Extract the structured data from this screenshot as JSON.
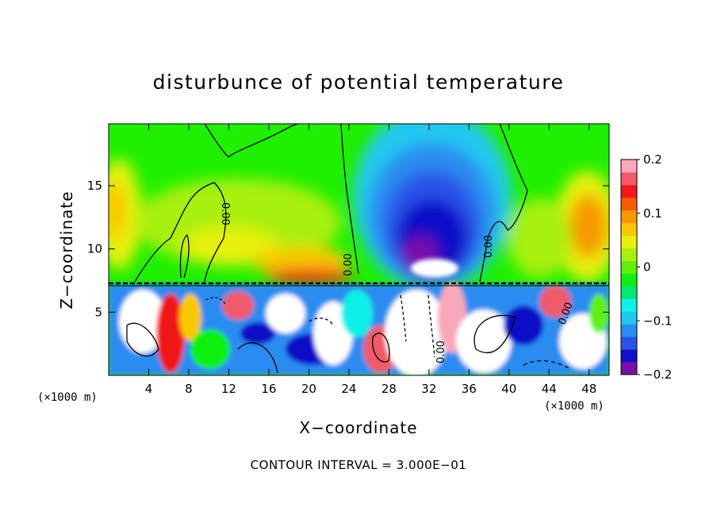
{
  "chart_data": {
    "type": "heatmap",
    "title": "disturbunce of potential temperature",
    "xlabel": "X−coordinate",
    "ylabel": "Z−coordinate",
    "x_unit_label_left": "(×1000 m)",
    "x_unit_label_right": "(×1000 m)",
    "x_range": [
      0,
      50
    ],
    "y_range": [
      0,
      19.9
    ],
    "x_ticks": [
      4,
      8,
      12,
      16,
      20,
      24,
      28,
      32,
      36,
      40,
      44,
      48
    ],
    "x_tick_labels": [
      "4",
      "8",
      "12",
      "16",
      "20",
      "24",
      "28",
      "32",
      "36",
      "40",
      "44",
      "48"
    ],
    "y_ticks": [
      5,
      10,
      15
    ],
    "y_tick_labels": [
      "5",
      "10",
      "15"
    ],
    "colorbar": {
      "range": [
        -0.2,
        0.2
      ],
      "ticks": [
        0.2,
        0.1,
        0,
        -0.1,
        -0.2
      ],
      "tick_labels": [
        "0.2",
        "0.1",
        "0",
        "−0.1",
        "−0.2"
      ],
      "colors": [
        "#7a0fa8",
        "#1010c8",
        "#2a52e8",
        "#2a8cf0",
        "#20c8f0",
        "#10f0e8",
        "#00e878",
        "#10f010",
        "#60f010",
        "#a8f010",
        "#e8f010",
        "#f8c800",
        "#f89800",
        "#f85a00",
        "#f01818",
        "#f05a6a",
        "#f8a8b8"
      ]
    },
    "contour_label": "0.00",
    "footer": "CONTOUR INTERVAL = 3.000E−01"
  }
}
